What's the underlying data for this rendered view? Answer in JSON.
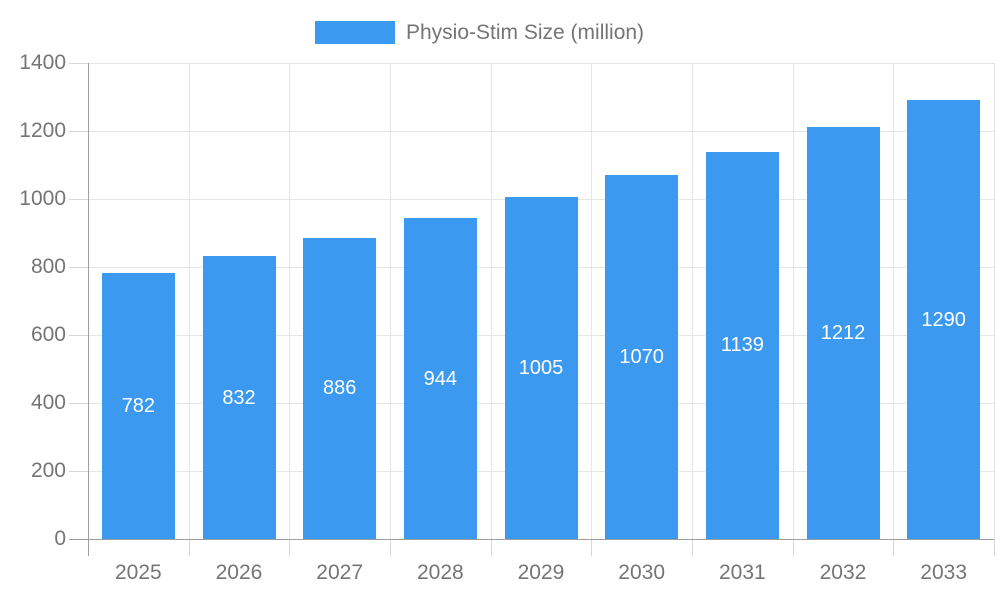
{
  "chart_data": {
    "type": "bar",
    "title": "",
    "legend": "Physio-Stim Size (million)",
    "legend_position": "top",
    "categories": [
      "2025",
      "2026",
      "2027",
      "2028",
      "2029",
      "2030",
      "2031",
      "2032",
      "2033"
    ],
    "values": [
      782,
      832,
      886,
      944,
      1005,
      1070,
      1139,
      1212,
      1290
    ],
    "xlabel": "",
    "ylabel": "",
    "ylim": [
      0,
      1400
    ],
    "yticks": [
      0,
      200,
      400,
      600,
      800,
      1000,
      1200,
      1400
    ],
    "grid": true,
    "bar_labels_inside": true
  },
  "colors": {
    "bar": "#3b99f0",
    "bar_value_text": "#ffffff",
    "grid": "#e6e6e6",
    "tick": "#d6d6d6",
    "axis": "#9e9e9e",
    "axis_text": "#757575"
  }
}
